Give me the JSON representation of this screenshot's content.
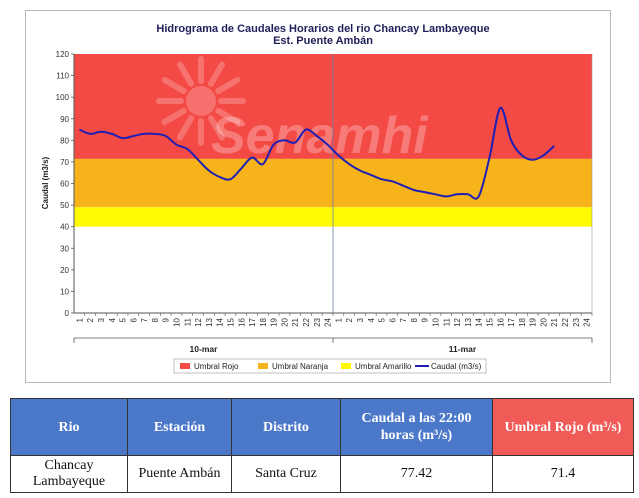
{
  "chart_data": {
    "type": "line",
    "title": "Hidrograma de Caudales Horarios del rio Chancay Lambayeque",
    "subtitle": "Est. Puente Ambán",
    "ylabel": "Caudal  (m3/s)",
    "ylim": [
      0,
      120
    ],
    "yticks": [
      0,
      10,
      20,
      30,
      40,
      50,
      60,
      70,
      80,
      90,
      100,
      110,
      120
    ],
    "xtick_labels": [
      "1",
      "2",
      "3",
      "4",
      "5",
      "6",
      "7",
      "8",
      "9",
      "10",
      "11",
      "12",
      "13",
      "14",
      "15",
      "16",
      "17",
      "18",
      "19",
      "20",
      "21",
      "22",
      "23",
      "24",
      "1",
      "2",
      "3",
      "4",
      "5",
      "6",
      "7",
      "8",
      "9",
      "10",
      "11",
      "12",
      "13",
      "14",
      "15",
      "16",
      "17",
      "18",
      "19",
      "20",
      "21",
      "22",
      "23",
      "24"
    ],
    "days": [
      "10-mar",
      "11-mar"
    ],
    "bands": [
      {
        "name": "Umbral Rojo",
        "from": 71.4,
        "to": 120,
        "color": "#f44a45"
      },
      {
        "name": "Umbral Naranja",
        "from": 49,
        "to": 71.4,
        "color": "#f6b31a"
      },
      {
        "name": "Umbral Amarillo",
        "from": 40,
        "to": 49,
        "color": "#fffa00"
      }
    ],
    "series": [
      {
        "name": "Caudal (m3/s)",
        "color": "#1f1fb4",
        "values": [
          85,
          83,
          84,
          83,
          81,
          82,
          83,
          83,
          82,
          78,
          76,
          71,
          66,
          63,
          62,
          67,
          72,
          69,
          78,
          80,
          79,
          85,
          82,
          78,
          73,
          69,
          66,
          64,
          62,
          61,
          59,
          57,
          56,
          55,
          54,
          55,
          55,
          54,
          72,
          95,
          80,
          73,
          71,
          73,
          77.42
        ]
      }
    ],
    "legend_position": "bottom",
    "grid": false,
    "watermark": "Senamhi"
  },
  "table": {
    "headers": [
      "Rio",
      "Estación",
      "Distrito",
      "Caudal a las 22:00 horas (m³/s)",
      "Umbral Rojo (m³/s)"
    ],
    "rows": [
      [
        "Chancay Lambayeque",
        "Puente Ambán",
        "Santa Cruz",
        "77.42",
        "71.4"
      ]
    ]
  }
}
